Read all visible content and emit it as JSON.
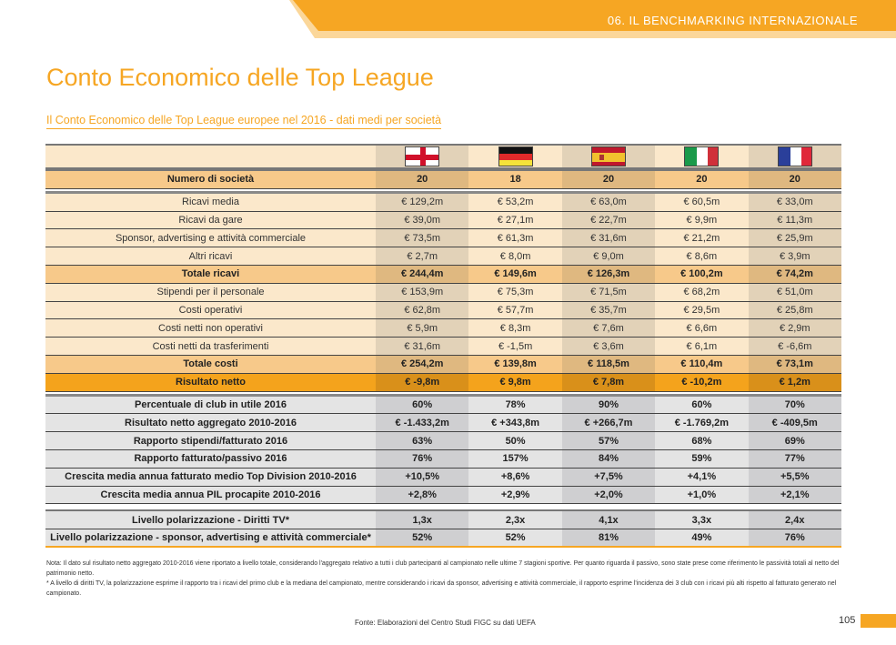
{
  "header": {
    "section": "06. IL BENCHMARKING INTERNAZIONALE"
  },
  "title": "Conto Economico delle Top League",
  "subtitle": "Il Conto Economico delle Top League europee nel 2016 - dati medi per società",
  "flags": [
    "england-flag",
    "germany-flag",
    "spain-flag",
    "italy-flag",
    "france-flag"
  ],
  "colors": {
    "accent": "#f6a623"
  },
  "table": {
    "count": {
      "label": "Numero di società",
      "values": [
        "20",
        "18",
        "20",
        "20",
        "20"
      ]
    },
    "finance": [
      {
        "label": "Ricavi media",
        "values": [
          "€ 129,2m",
          "€ 53,2m",
          "€ 63,0m",
          "€ 60,5m",
          "€ 33,0m"
        ],
        "style": "n"
      },
      {
        "label": "Ricavi da gare",
        "values": [
          "€ 39,0m",
          "€ 27,1m",
          "€ 22,7m",
          "€ 9,9m",
          "€ 11,3m"
        ],
        "style": "n"
      },
      {
        "label": "Sponsor, advertising e attività commerciale",
        "values": [
          "€ 73,5m",
          "€ 61,3m",
          "€ 31,6m",
          "€ 21,2m",
          "€ 25,9m"
        ],
        "style": "n"
      },
      {
        "label": "Altri ricavi",
        "values": [
          "€ 2,7m",
          "€ 8,0m",
          "€ 9,0m",
          "€ 8,6m",
          "€ 3,9m"
        ],
        "style": "n"
      },
      {
        "label": "Totale ricavi",
        "values": [
          "€ 244,4m",
          "€ 149,6m",
          "€ 126,3m",
          "€ 100,2m",
          "€ 74,2m"
        ],
        "style": "t"
      },
      {
        "label": "Stipendi per il personale",
        "values": [
          "€ 153,9m",
          "€ 75,3m",
          "€ 71,5m",
          "€ 68,2m",
          "€ 51,0m"
        ],
        "style": "n"
      },
      {
        "label": "Costi operativi",
        "values": [
          "€ 62,8m",
          "€ 57,7m",
          "€ 35,7m",
          "€ 29,5m",
          "€ 25,8m"
        ],
        "style": "n"
      },
      {
        "label": "Costi netti non operativi",
        "values": [
          "€ 5,9m",
          "€ 8,3m",
          "€ 7,6m",
          "€ 6,6m",
          "€ 2,9m"
        ],
        "style": "n"
      },
      {
        "label": "Costi netti da trasferimenti",
        "values": [
          "€ 31,6m",
          "€ -1,5m",
          "€ 3,6m",
          "€ 6,1m",
          "€ -6,6m"
        ],
        "style": "n"
      },
      {
        "label": "Totale costi",
        "values": [
          "€ 254,2m",
          "€ 139,8m",
          "€ 118,5m",
          "€ 110,4m",
          "€ 73,1m"
        ],
        "style": "t"
      },
      {
        "label": "Risultato netto",
        "values": [
          "€ -9,8m",
          "€ 9,8m",
          "€ 7,8m",
          "€ -10,2m",
          "€ 1,2m"
        ],
        "style": "r"
      }
    ],
    "indicators": [
      {
        "label": "Percentuale di club in utile 2016",
        "values": [
          "60%",
          "78%",
          "90%",
          "60%",
          "70%"
        ]
      },
      {
        "label": "Risultato netto aggregato 2010-2016",
        "values": [
          "€ -1.433,2m",
          "€ +343,8m",
          "€ +266,7m",
          "€ -1.769,2m",
          "€ -409,5m"
        ]
      },
      {
        "label": "Rapporto stipendi/fatturato 2016",
        "values": [
          "63%",
          "50%",
          "57%",
          "68%",
          "69%"
        ]
      },
      {
        "label": "Rapporto fatturato/passivo 2016",
        "values": [
          "76%",
          "157%",
          "84%",
          "59%",
          "77%"
        ]
      },
      {
        "label": "Crescita media annua fatturato medio Top Division 2010-2016",
        "values": [
          "+10,5%",
          "+8,6%",
          "+7,5%",
          "+4,1%",
          "+5,5%"
        ]
      },
      {
        "label": "Crescita media annua PIL procapite 2010-2016",
        "values": [
          "+2,8%",
          "+2,9%",
          "+2,0%",
          "+1,0%",
          "+2,1%"
        ]
      }
    ],
    "polarization": [
      {
        "label": "Livello polarizzazione - Diritti TV*",
        "values": [
          "1,3x",
          "2,3x",
          "4,1x",
          "3,3x",
          "2,4x"
        ]
      },
      {
        "label": "Livello polarizzazione - sponsor, advertising e attività commerciale*",
        "values": [
          "52%",
          "52%",
          "81%",
          "49%",
          "76%"
        ]
      }
    ]
  },
  "notes": [
    "Nota: Il dato sul risultato netto aggregato 2010-2016 viene riportato a livello totale, considerando l'aggregato relativo a tutti i club partecipanti al campionato nelle ultime 7 stagioni sportive. Per quanto riguarda il passivo, sono state prese come riferimento le passività totali al netto del patrimonio netto.",
    "* A livello di diritti TV, la polarizzazione esprime il rapporto tra i ricavi del primo club e la mediana del campionato, mentre considerando i ricavi da sponsor, advertising e attività commerciale, il rapporto esprime l'incidenza dei 3 club con i ricavi più alti rispetto al fatturato generato nel campionato."
  ],
  "source": "Fonte: Elaborazioni del Centro Studi FIGC su dati UEFA",
  "page_number": "105"
}
